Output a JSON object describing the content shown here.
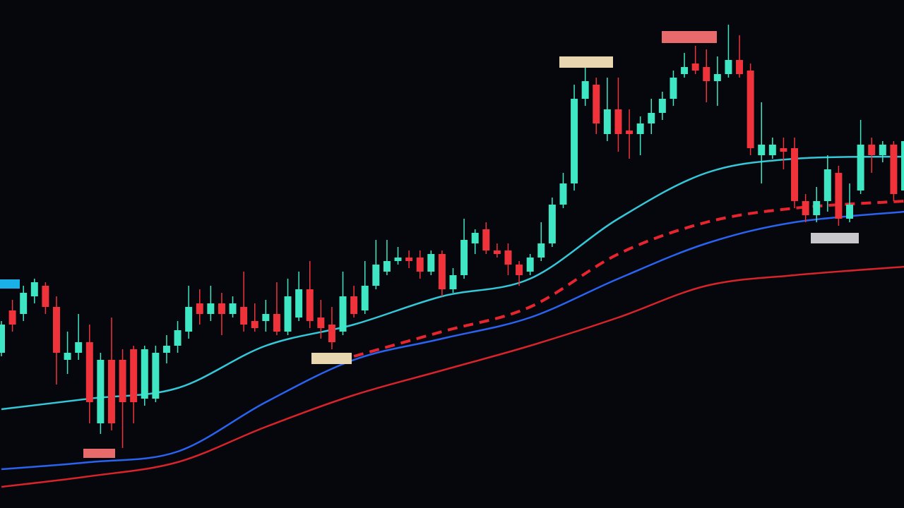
{
  "chart_data": {
    "type": "candlestick",
    "up_color": "#3ee6c4",
    "down_color": "#f0323b",
    "ylim": [
      0,
      720
    ],
    "xlim": [
      0,
      82
    ],
    "open": [
      220,
      280,
      275,
      300,
      315,
      285,
      210,
      220,
      235,
      120,
      210,
      210,
      225,
      155,
      155,
      220,
      230,
      250,
      290,
      275,
      290,
      275,
      285,
      265,
      265,
      275,
      250,
      270,
      310,
      270,
      260,
      250,
      300,
      280,
      315,
      335,
      350,
      355,
      355,
      335,
      360,
      310,
      330,
      375,
      395,
      365,
      365,
      345,
      335,
      355,
      375,
      430,
      460,
      580,
      600,
      530,
      565,
      535,
      530,
      545,
      560,
      580,
      615,
      630,
      625,
      605,
      615,
      635,
      620,
      500,
      500,
      510,
      510,
      435,
      415,
      435,
      475,
      410,
      450,
      515,
      500,
      515,
      450
    ],
    "high": [
      265,
      295,
      315,
      325,
      320,
      300,
      250,
      275,
      260,
      220,
      270,
      225,
      230,
      230,
      230,
      245,
      265,
      315,
      310,
      315,
      305,
      300,
      335,
      290,
      295,
      320,
      325,
      335,
      350,
      295,
      285,
      335,
      315,
      350,
      380,
      380,
      370,
      365,
      365,
      365,
      365,
      340,
      410,
      395,
      405,
      375,
      375,
      350,
      360,
      405,
      440,
      475,
      600,
      625,
      610,
      610,
      610,
      565,
      555,
      580,
      590,
      620,
      645,
      655,
      650,
      640,
      685,
      670,
      630,
      575,
      525,
      525,
      525,
      445,
      455,
      500,
      485,
      460,
      550,
      525,
      520,
      520,
      530
    ],
    "low": [
      215,
      250,
      265,
      290,
      275,
      175,
      190,
      210,
      120,
      105,
      110,
      85,
      120,
      145,
      150,
      205,
      220,
      240,
      260,
      265,
      245,
      270,
      250,
      250,
      250,
      245,
      245,
      265,
      255,
      240,
      225,
      245,
      270,
      275,
      310,
      330,
      345,
      340,
      325,
      330,
      300,
      305,
      325,
      360,
      360,
      355,
      330,
      315,
      330,
      350,
      370,
      425,
      450,
      570,
      530,
      520,
      505,
      495,
      500,
      530,
      550,
      570,
      610,
      615,
      575,
      570,
      610,
      610,
      500,
      460,
      495,
      480,
      425,
      405,
      405,
      420,
      400,
      405,
      445,
      475,
      490,
      435,
      445
    ],
    "close": [
      260,
      260,
      305,
      320,
      285,
      220,
      220,
      235,
      150,
      210,
      120,
      150,
      150,
      225,
      220,
      230,
      252,
      285,
      275,
      290,
      275,
      290,
      260,
      255,
      275,
      250,
      300,
      310,
      265,
      255,
      235,
      300,
      275,
      315,
      345,
      350,
      355,
      350,
      335,
      360,
      310,
      330,
      380,
      390,
      365,
      360,
      345,
      330,
      355,
      375,
      430,
      460,
      580,
      605,
      545,
      565,
      530,
      530,
      545,
      560,
      580,
      610,
      625,
      620,
      605,
      615,
      635,
      615,
      510,
      515,
      515,
      505,
      435,
      415,
      435,
      480,
      410,
      430,
      515,
      500,
      515,
      445,
      520
    ],
    "lines": [
      {
        "color": "#35c8d8",
        "dashed": false,
        "x": [
          0,
          8,
          16,
          24,
          32,
          40,
          48,
          56,
          64,
          72,
          82
        ],
        "values": [
          140,
          155,
          170,
          230,
          260,
          300,
          325,
          410,
          475,
          495,
          498
        ]
      },
      {
        "color": "#e8252e",
        "dashed": true,
        "x": [
          0,
          8,
          16,
          24,
          32,
          40,
          48,
          56,
          64,
          72,
          82
        ],
        "values": [
          null,
          null,
          null,
          null,
          215,
          250,
          285,
          360,
          405,
          425,
          435
        ]
      },
      {
        "color": "#2a63f0",
        "dashed": false,
        "x": [
          0,
          8,
          16,
          24,
          32,
          40,
          48,
          56,
          64,
          72,
          82
        ],
        "values": [
          55,
          65,
          80,
          150,
          210,
          240,
          270,
          325,
          375,
          405,
          420
        ]
      },
      {
        "color": "#d8232a",
        "dashed": false,
        "x": [
          0,
          8,
          16,
          24,
          32,
          40,
          48,
          56,
          64,
          72,
          82
        ],
        "values": [
          30,
          45,
          65,
          115,
          160,
          195,
          230,
          270,
          315,
          330,
          342
        ]
      }
    ]
  }
}
